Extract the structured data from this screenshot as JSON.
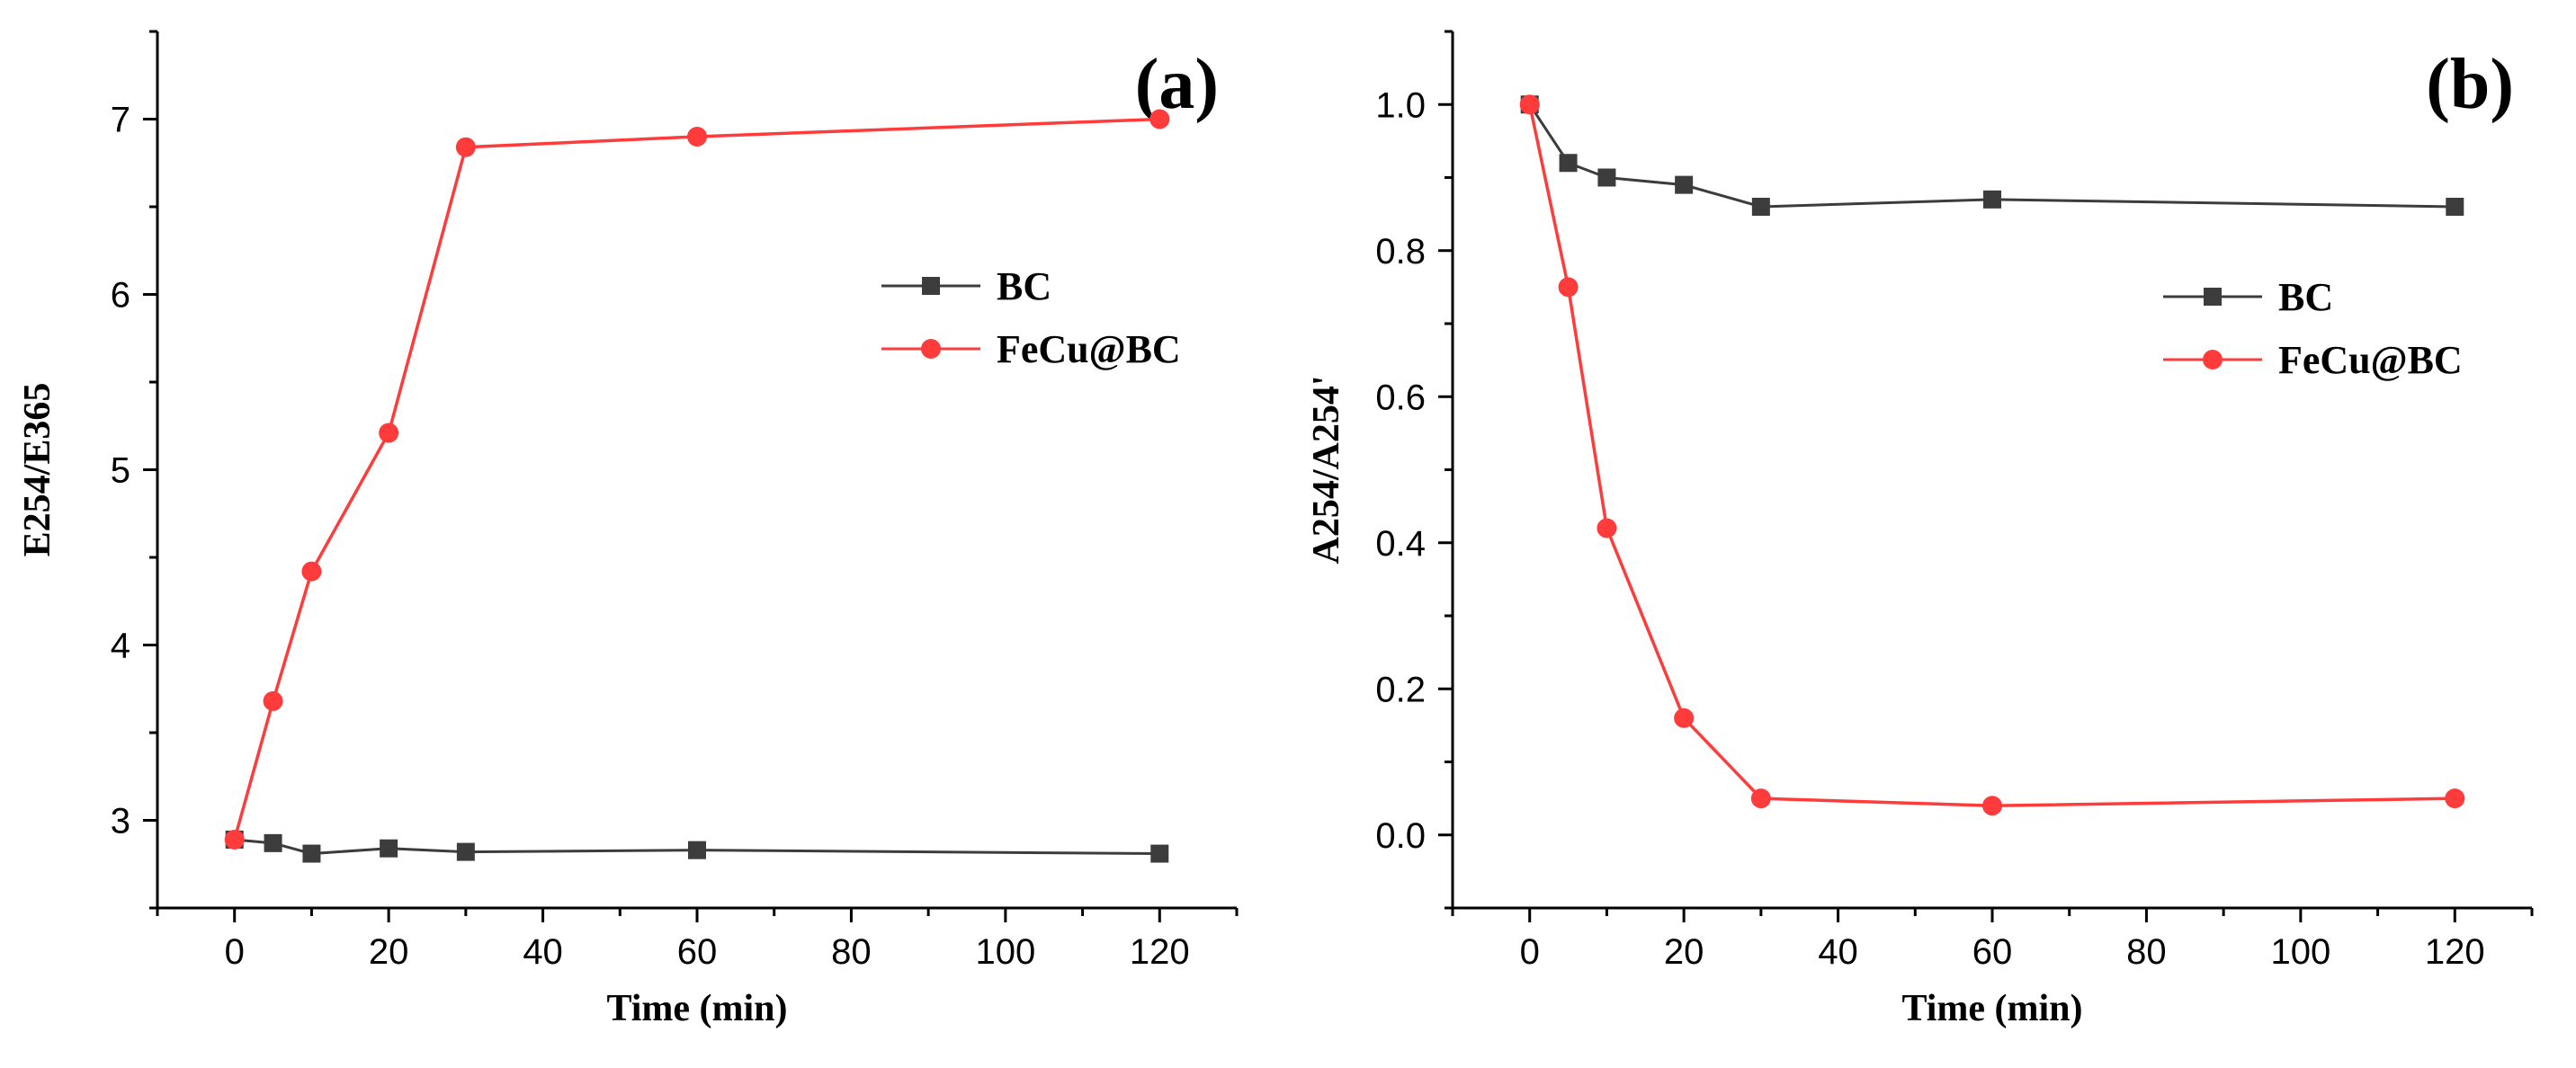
{
  "chart_data": [
    {
      "type": "line",
      "panel_label": "(a)",
      "title": "",
      "xlabel": "Time (min)",
      "ylabel": "E254/E365",
      "xlim": [
        -10,
        130
      ],
      "ylim": [
        2.5,
        7.5
      ],
      "xticks": [
        0,
        20,
        40,
        60,
        80,
        100,
        120
      ],
      "yticks": [
        3,
        4,
        5,
        6,
        7
      ],
      "xtick_labels": [
        "0",
        "20",
        "40",
        "60",
        "80",
        "100",
        "120"
      ],
      "ytick_labels": [
        "3",
        "4",
        "5",
        "6",
        "7"
      ],
      "legend_position": "center-right",
      "series": [
        {
          "name": "BC",
          "color": "#3c3c3c",
          "marker": "square",
          "x": [
            0,
            5,
            10,
            20,
            30,
            60,
            120
          ],
          "values": [
            2.89,
            2.87,
            2.81,
            2.84,
            2.82,
            2.83,
            2.81
          ]
        },
        {
          "name": "FeCu@BC",
          "color": "#ff3b3b",
          "marker": "circle",
          "x": [
            0,
            5,
            10,
            20,
            30,
            60,
            120
          ],
          "values": [
            2.89,
            3.68,
            4.42,
            5.21,
            6.84,
            6.9,
            7.0
          ]
        }
      ]
    },
    {
      "type": "line",
      "panel_label": "(b)",
      "title": "",
      "xlabel": "Time (min)",
      "ylabel": "A254/A254'",
      "xlim": [
        -10,
        130
      ],
      "ylim": [
        -0.1,
        1.1
      ],
      "xticks": [
        0,
        20,
        40,
        60,
        80,
        100,
        120
      ],
      "yticks": [
        0.0,
        0.2,
        0.4,
        0.6,
        0.8,
        1.0
      ],
      "xtick_labels": [
        "0",
        "20",
        "40",
        "60",
        "80",
        "100",
        "120"
      ],
      "ytick_labels": [
        "0.0",
        "0.2",
        "0.4",
        "0.6",
        "0.8",
        "1.0"
      ],
      "legend_position": "center-right",
      "series": [
        {
          "name": "BC",
          "color": "#3c3c3c",
          "marker": "square",
          "x": [
            0,
            5,
            10,
            20,
            30,
            60,
            120
          ],
          "values": [
            1.0,
            0.92,
            0.9,
            0.89,
            0.86,
            0.87,
            0.86
          ]
        },
        {
          "name": "FeCu@BC",
          "color": "#ff3b3b",
          "marker": "circle",
          "x": [
            0,
            5,
            10,
            20,
            30,
            60,
            120
          ],
          "values": [
            1.0,
            0.75,
            0.42,
            0.16,
            0.05,
            0.04,
            0.05
          ]
        }
      ]
    }
  ]
}
